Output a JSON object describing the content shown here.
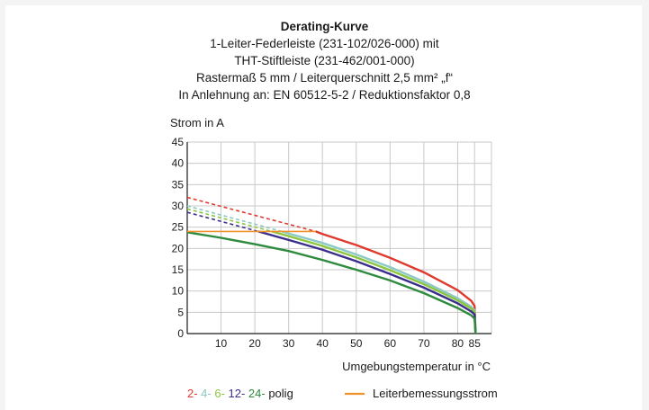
{
  "chart_data": {
    "type": "line",
    "title": "Derating-Kurve",
    "subtitle_lines": [
      "1-Leiter-Federleiste (231-102/026-000) mit",
      "THT-Stiftleiste (231-462/001-000)",
      "Rastermaß 5 mm / Leiterquerschnitt 2,5 mm² „f“",
      "In Anlehnung an: EN 60512-5-2 / Reduktionsfaktor 0,8"
    ],
    "ylabel": "Strom in A",
    "xlabel": "Umgebungstemperatur in °C",
    "xlim": [
      0,
      90
    ],
    "ylim": [
      0,
      45
    ],
    "x_ticks": [
      10,
      20,
      30,
      40,
      50,
      60,
      70,
      80,
      85
    ],
    "y_ticks": [
      0,
      5,
      10,
      15,
      20,
      25,
      30,
      35,
      40,
      45
    ],
    "grid": true,
    "series": [
      {
        "name": "2-",
        "color": "#e03a2f",
        "dashed": [
          [
            0,
            32
          ],
          [
            38,
            24
          ]
        ],
        "solid": [
          [
            38,
            24
          ],
          [
            40,
            23.4
          ],
          [
            50,
            20.8
          ],
          [
            60,
            17.8
          ],
          [
            70,
            14.4
          ],
          [
            80,
            10.2
          ],
          [
            84,
            7.7
          ],
          [
            85,
            6.5
          ],
          [
            85.3,
            0
          ]
        ]
      },
      {
        "name": "4-",
        "color": "#8cc9c4",
        "dashed": [
          [
            0,
            30
          ],
          [
            28,
            24
          ]
        ],
        "solid": [
          [
            28,
            24
          ],
          [
            30,
            23.5
          ],
          [
            40,
            21.3
          ],
          [
            50,
            18.6
          ],
          [
            60,
            15.6
          ],
          [
            70,
            12.2
          ],
          [
            80,
            8.3
          ],
          [
            84,
            6.3
          ],
          [
            85,
            5.5
          ],
          [
            85.3,
            0
          ]
        ]
      },
      {
        "name": "6-",
        "color": "#8cc63f",
        "dashed": [
          [
            0,
            29.3
          ],
          [
            25,
            24
          ]
        ],
        "solid": [
          [
            25,
            24
          ],
          [
            30,
            22.9
          ],
          [
            40,
            20.6
          ],
          [
            50,
            17.9
          ],
          [
            60,
            14.9
          ],
          [
            70,
            11.6
          ],
          [
            80,
            7.8
          ],
          [
            84,
            5.9
          ],
          [
            85,
            5.1
          ],
          [
            85.3,
            0
          ]
        ]
      },
      {
        "name": "12-",
        "color": "#3a2e8c",
        "dashed": [
          [
            0,
            28.5
          ],
          [
            21,
            24
          ]
        ],
        "solid": [
          [
            21,
            24
          ],
          [
            30,
            22.0
          ],
          [
            40,
            19.7
          ],
          [
            50,
            17.0
          ],
          [
            60,
            14.0
          ],
          [
            70,
            10.8
          ],
          [
            80,
            7.1
          ],
          [
            84,
            5.2
          ],
          [
            85,
            4.5
          ],
          [
            85.3,
            0
          ]
        ]
      },
      {
        "name": "24-",
        "color": "#2e8b3e",
        "dashed": [],
        "solid": [
          [
            0,
            23.8
          ],
          [
            10,
            22.5
          ],
          [
            20,
            21.0
          ],
          [
            30,
            19.4
          ],
          [
            40,
            17.3
          ],
          [
            50,
            15.0
          ],
          [
            60,
            12.5
          ],
          [
            70,
            9.5
          ],
          [
            80,
            6.0
          ],
          [
            84,
            4.3
          ],
          [
            85,
            3.5
          ],
          [
            85.3,
            0
          ]
        ]
      },
      {
        "name": "Leiterbemessungsstrom",
        "color": "#f0922b",
        "dashed": [],
        "solid": [
          [
            0,
            24
          ],
          [
            38,
            24
          ]
        ]
      }
    ],
    "legend": {
      "position": "bottom",
      "pole_items": [
        {
          "label": "2-",
          "color": "#e03a2f"
        },
        {
          "label": "4-",
          "color": "#8cc9c4"
        },
        {
          "label": "6-",
          "color": "#8cc63f"
        },
        {
          "label": "12-",
          "color": "#3a2e8c"
        },
        {
          "label": "24-",
          "color": "#2e8b3e"
        }
      ],
      "pole_suffix": "polig",
      "line_item": {
        "label": "Leiterbemessungsstrom",
        "color": "#f0922b"
      }
    }
  }
}
